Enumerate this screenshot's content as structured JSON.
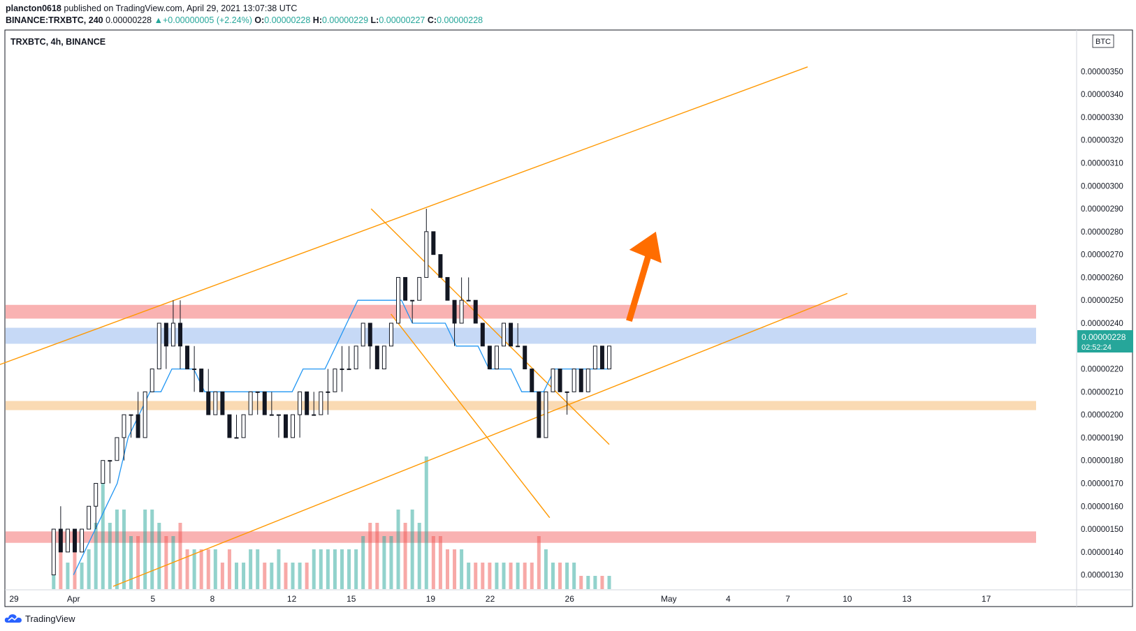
{
  "header": {
    "author": "plancton0618",
    "published_text": "published on TradingView.com, April 29, 2021 13:07:38 UTC",
    "symbol": "BINANCE:TRXBTC, 240",
    "last": "0.00000228",
    "change": "+0.00000005 (+2.24%)",
    "o_label": "O:",
    "o_value": "0.00000228",
    "h_label": "H:",
    "h_value": "0.00000229",
    "l_label": "L:",
    "l_value": "0.00000227",
    "c_label": "C:",
    "c_value": "0.00000228"
  },
  "chart": {
    "pane_title": "TRXBTC, 4h, BINANCE",
    "currency": "BTC",
    "price_tag": "0.00000228",
    "countdown_tag": "02:52:24"
  },
  "footer": {
    "brand": "TradingView"
  },
  "colors": {
    "bull": "#26a69a",
    "bear": "#ef5350",
    "candle": "#131722",
    "channel": "#ff9800",
    "sma": "#2196f3",
    "arrow": "#ff6d00",
    "zone_red": "#f8a5a5",
    "zone_blue": "#bcd2f5",
    "zone_orange": "#f9d4a6"
  },
  "chart_data": {
    "type": "candlestick",
    "title": "TRXBTC, 4h, BINANCE",
    "ylabel": "BTC",
    "ylim": [
      1.25e-06,
      3.55e-06
    ],
    "y_ticks": [
      "0.00000130",
      "0.00000140",
      "0.00000150",
      "0.00000160",
      "0.00000170",
      "0.00000180",
      "0.00000190",
      "0.00000200",
      "0.00000210",
      "0.00000220",
      "0.00000230",
      "0.00000240",
      "0.00000250",
      "0.00000260",
      "0.00000270",
      "0.00000280",
      "0.00000290",
      "0.00000300",
      "0.00000310",
      "0.00000320",
      "0.00000330",
      "0.00000340",
      "0.00000350"
    ],
    "x_ticks": [
      "29",
      "Apr",
      "5",
      "8",
      "12",
      "15",
      "19",
      "22",
      "26",
      "May",
      "4",
      "7",
      "10",
      "13",
      "17"
    ],
    "x_tick_dates": [
      "2021-03-29",
      "2021-04-01",
      "2021-04-05",
      "2021-04-08",
      "2021-04-12",
      "2021-04-15",
      "2021-04-19",
      "2021-04-22",
      "2021-04-26",
      "2021-05-01",
      "2021-05-04",
      "2021-05-07",
      "2021-05-10",
      "2021-05-13",
      "2021-05-17"
    ],
    "last_price": 2.28e-06,
    "zones": [
      {
        "color": "red",
        "from": 2.42e-06,
        "to": 2.48e-06
      },
      {
        "color": "blue",
        "from": 2.31e-06,
        "to": 2.38e-06
      },
      {
        "color": "orange",
        "from": 2.02e-06,
        "to": 2.06e-06
      },
      {
        "color": "red",
        "from": 1.44e-06,
        "to": 1.49e-06
      }
    ],
    "trendlines": [
      {
        "name": "channel-upper",
        "from": [
          "2021-03-28",
          2.21e-06
        ],
        "to": [
          "2021-05-08",
          3.52e-06
        ]
      },
      {
        "name": "channel-lower",
        "from": [
          "2021-04-03",
          1.25e-06
        ],
        "to": [
          "2021-05-10",
          2.53e-06
        ]
      },
      {
        "name": "wedge-upper",
        "from": [
          "2021-04-16",
          2.9e-06
        ],
        "to": [
          "2021-04-28",
          1.87e-06
        ]
      },
      {
        "name": "wedge-lower",
        "from": [
          "2021-04-17",
          2.44e-06
        ],
        "to": [
          "2021-04-25",
          1.55e-06
        ]
      }
    ],
    "arrow": {
      "from": [
        "2021-04-29",
        2.41e-06
      ],
      "to": [
        "2021-04-30",
        2.8e-06
      ]
    },
    "candles": [
      [
        1.3e-06,
        1.5e-06,
        1.3e-06,
        1.5e-06
      ],
      [
        1.5e-06,
        1.6e-06,
        1.4e-06,
        1.4e-06
      ],
      [
        1.4e-06,
        1.5e-06,
        1.4e-06,
        1.5e-06
      ],
      [
        1.5e-06,
        1.5e-06,
        1.4e-06,
        1.4e-06
      ],
      [
        1.4e-06,
        1.5e-06,
        1.4e-06,
        1.5e-06
      ],
      [
        1.5e-06,
        1.6e-06,
        1.5e-06,
        1.6e-06
      ],
      [
        1.6e-06,
        1.7e-06,
        1.5e-06,
        1.7e-06
      ],
      [
        1.7e-06,
        1.8e-06,
        1.7e-06,
        1.8e-06
      ],
      [
        1.8e-06,
        1.8e-06,
        1.7e-06,
        1.8e-06
      ],
      [
        1.8e-06,
        1.9e-06,
        1.8e-06,
        1.9e-06
      ],
      [
        1.9e-06,
        2e-06,
        1.8e-06,
        2e-06
      ],
      [
        2e-06,
        2e-06,
        1.9e-06,
        2e-06
      ],
      [
        2e-06,
        2.1e-06,
        1.9e-06,
        1.9e-06
      ],
      [
        1.9e-06,
        2.1e-06,
        1.9e-06,
        2.1e-06
      ],
      [
        2.1e-06,
        2.2e-06,
        2.1e-06,
        2.2e-06
      ],
      [
        2.2e-06,
        2.4e-06,
        2.2e-06,
        2.4e-06
      ],
      [
        2.4e-06,
        2.4e-06,
        2.2e-06,
        2.3e-06
      ],
      [
        2.3e-06,
        2.5e-06,
        2.3e-06,
        2.4e-06
      ],
      [
        2.4e-06,
        2.5e-06,
        2.2e-06,
        2.3e-06
      ],
      [
        2.3e-06,
        2.3e-06,
        2.2e-06,
        2.2e-06
      ],
      [
        2.2e-06,
        2.3e-06,
        2.1e-06,
        2.2e-06
      ],
      [
        2.2e-06,
        2.2e-06,
        2.1e-06,
        2.1e-06
      ],
      [
        2.1e-06,
        2.2e-06,
        2e-06,
        2e-06
      ],
      [
        2e-06,
        2.1e-06,
        2e-06,
        2.1e-06
      ],
      [
        2.1e-06,
        2.1e-06,
        2e-06,
        2e-06
      ],
      [
        2e-06,
        2e-06,
        1.9e-06,
        1.9e-06
      ],
      [
        1.9e-06,
        2e-06,
        1.9e-06,
        1.9e-06
      ],
      [
        1.9e-06,
        2e-06,
        1.9e-06,
        2e-06
      ],
      [
        2e-06,
        2.1e-06,
        2e-06,
        2.1e-06
      ],
      [
        2.1e-06,
        2.1e-06,
        2e-06,
        2.1e-06
      ],
      [
        2.1e-06,
        2.1e-06,
        2e-06,
        2e-06
      ],
      [
        2e-06,
        2.1e-06,
        2e-06,
        2e-06
      ],
      [
        2e-06,
        2e-06,
        1.9e-06,
        2e-06
      ],
      [
        2e-06,
        2e-06,
        1.9e-06,
        1.9e-06
      ],
      [
        1.9e-06,
        2e-06,
        1.9e-06,
        2e-06
      ],
      [
        2e-06,
        2.1e-06,
        1.9e-06,
        2.1e-06
      ],
      [
        2.1e-06,
        2.1e-06,
        2e-06,
        2e-06
      ],
      [
        2e-06,
        2.1e-06,
        2e-06,
        2e-06
      ],
      [
        2e-06,
        2.1e-06,
        2e-06,
        2.1e-06
      ],
      [
        2.1e-06,
        2.2e-06,
        2e-06,
        2.1e-06
      ],
      [
        2.1e-06,
        2.2e-06,
        2.1e-06,
        2.2e-06
      ],
      [
        2.2e-06,
        2.3e-06,
        2.1e-06,
        2.2e-06
      ],
      [
        2.2e-06,
        2.3e-06,
        2.2e-06,
        2.2e-06
      ],
      [
        2.2e-06,
        2.3e-06,
        2.2e-06,
        2.3e-06
      ],
      [
        2.3e-06,
        2.4e-06,
        2.3e-06,
        2.4e-06
      ],
      [
        2.4e-06,
        2.4e-06,
        2.2e-06,
        2.3e-06
      ],
      [
        2.3e-06,
        2.3e-06,
        2.2e-06,
        2.2e-06
      ],
      [
        2.2e-06,
        2.3e-06,
        2.2e-06,
        2.3e-06
      ],
      [
        2.3e-06,
        2.4e-06,
        2.3e-06,
        2.4e-06
      ],
      [
        2.4e-06,
        2.6e-06,
        2.4e-06,
        2.6e-06
      ],
      [
        2.6e-06,
        2.6e-06,
        2.5e-06,
        2.5e-06
      ],
      [
        2.5e-06,
        2.5e-06,
        2.4e-06,
        2.5e-06
      ],
      [
        2.5e-06,
        2.6e-06,
        2.5e-06,
        2.6e-06
      ],
      [
        2.6e-06,
        2.9e-06,
        2.6e-06,
        2.8e-06
      ],
      [
        2.8e-06,
        2.8e-06,
        2.7e-06,
        2.7e-06
      ],
      [
        2.7e-06,
        2.7e-06,
        2.6e-06,
        2.6e-06
      ],
      [
        2.6e-06,
        2.6e-06,
        2.5e-06,
        2.5e-06
      ],
      [
        2.5e-06,
        2.5e-06,
        2.3e-06,
        2.4e-06
      ],
      [
        2.4e-06,
        2.6e-06,
        2.4e-06,
        2.5e-06
      ],
      [
        2.5e-06,
        2.6e-06,
        2.5e-06,
        2.5e-06
      ],
      [
        2.5e-06,
        2.5e-06,
        2.4e-06,
        2.4e-06
      ],
      [
        2.4e-06,
        2.4e-06,
        2.3e-06,
        2.3e-06
      ],
      [
        2.3e-06,
        2.3e-06,
        2.2e-06,
        2.2e-06
      ],
      [
        2.2e-06,
        2.3e-06,
        2.2e-06,
        2.3e-06
      ],
      [
        2.3e-06,
        2.4e-06,
        2.3e-06,
        2.4e-06
      ],
      [
        2.4e-06,
        2.4e-06,
        2.3e-06,
        2.3e-06
      ],
      [
        2.3e-06,
        2.4e-06,
        2.3e-06,
        2.3e-06
      ],
      [
        2.3e-06,
        2.3e-06,
        2.2e-06,
        2.2e-06
      ],
      [
        2.2e-06,
        2.2e-06,
        2.1e-06,
        2.1e-06
      ],
      [
        2.1e-06,
        2.1e-06,
        1.9e-06,
        1.9e-06
      ],
      [
        1.9e-06,
        2.1e-06,
        1.9e-06,
        2.1e-06
      ],
      [
        2.1e-06,
        2.2e-06,
        2.1e-06,
        2.2e-06
      ],
      [
        2.2e-06,
        2.2e-06,
        2.1e-06,
        2.1e-06
      ],
      [
        2.1e-06,
        2.1e-06,
        2e-06,
        2.1e-06
      ],
      [
        2.1e-06,
        2.2e-06,
        2.1e-06,
        2.2e-06
      ],
      [
        2.2e-06,
        2.2e-06,
        2.1e-06,
        2.1e-06
      ],
      [
        2.1e-06,
        2.2e-06,
        2.1e-06,
        2.2e-06
      ],
      [
        2.2e-06,
        2.3e-06,
        2.2e-06,
        2.3e-06
      ],
      [
        2.3e-06,
        2.3e-06,
        2.2e-06,
        2.2e-06
      ],
      [
        2.2e-06,
        2.3e-06,
        2.2e-06,
        2.3e-06
      ]
    ],
    "volumes": [
      0.3,
      0.3,
      0.2,
      0.3,
      0.2,
      0.3,
      0.5,
      0.9,
      0.5,
      0.6,
      0.6,
      0.4,
      0.4,
      0.6,
      0.6,
      0.5,
      0.4,
      0.4,
      0.5,
      0.3,
      0.3,
      0.3,
      0.3,
      0.3,
      0.2,
      0.3,
      0.2,
      0.2,
      0.3,
      0.3,
      0.2,
      0.2,
      0.3,
      0.2,
      0.2,
      0.2,
      0.2,
      0.3,
      0.3,
      0.3,
      0.3,
      0.3,
      0.3,
      0.3,
      0.4,
      0.5,
      0.5,
      0.4,
      0.4,
      0.6,
      0.5,
      0.6,
      0.5,
      1.0,
      0.4,
      0.4,
      0.3,
      0.3,
      0.3,
      0.2,
      0.2,
      0.2,
      0.2,
      0.2,
      0.2,
      0.2,
      0.2,
      0.2,
      0.2,
      0.4,
      0.3,
      0.2,
      0.2,
      0.2,
      0.2,
      0.1,
      0.1,
      0.1,
      0.1,
      0.1
    ],
    "sma": [
      1.3e-06,
      1.4e-06,
      1.5e-06,
      1.6e-06,
      1.7e-06,
      1.9e-06,
      2e-06,
      2.1e-06,
      2.1e-06,
      2.2e-06,
      2.2e-06,
      2.2e-06,
      2.1e-06,
      2.1e-06,
      2.1e-06,
      2.1e-06,
      2.1e-06,
      2.1e-06,
      2.1e-06,
      2.1e-06,
      2.1e-06,
      2.2e-06,
      2.2e-06,
      2.2e-06,
      2.3e-06,
      2.4e-06,
      2.5e-06,
      2.5e-06,
      2.5e-06,
      2.5e-06,
      2.5e-06,
      2.4e-06,
      2.4e-06,
      2.4e-06,
      2.4e-06,
      2.3e-06,
      2.3e-06,
      2.3e-06,
      2.2e-06,
      2.2e-06,
      2.2e-06,
      2.1e-06,
      2.1e-06,
      2.1e-06,
      2.2e-06,
      2.2e-06,
      2.2e-06,
      2.2e-06,
      2.2e-06,
      2.2e-06
    ]
  }
}
